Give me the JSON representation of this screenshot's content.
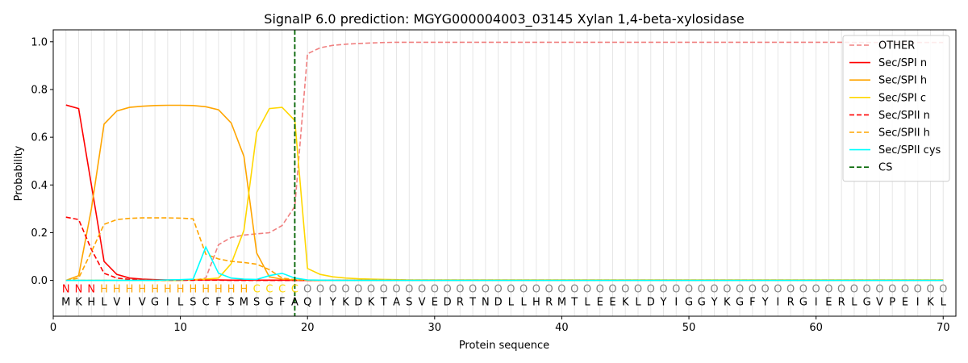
{
  "chart_data": {
    "type": "line",
    "title": "SignalP 6.0 prediction: MGYG000004003_03145 Xylan 1,4-beta-xylosidase",
    "xlabel": "Protein sequence",
    "ylabel": "Probability",
    "xlim": [
      0,
      71
    ],
    "ylim": [
      -0.15,
      1.05
    ],
    "xticks": [
      0,
      10,
      20,
      30,
      40,
      50,
      60,
      70
    ],
    "yticks": [
      0.0,
      0.2,
      0.4,
      0.6,
      0.8,
      1.0
    ],
    "legend_position": "top-right",
    "cleavage_site": {
      "label": "CS",
      "x": 19,
      "color": "#006400"
    },
    "sequence": [
      "M",
      "K",
      "H",
      "L",
      "V",
      "I",
      "V",
      "G",
      "I",
      "L",
      "S",
      "C",
      "F",
      "S",
      "M",
      "S",
      "G",
      "F",
      "A",
      "Q",
      "I",
      "Y",
      "K",
      "D",
      "K",
      "T",
      "A",
      "S",
      "V",
      "E",
      "D",
      "R",
      "T",
      "N",
      "D",
      "L",
      "L",
      "H",
      "R",
      "M",
      "T",
      "L",
      "E",
      "E",
      "K",
      "L",
      "D",
      "Y",
      "I",
      "G",
      "G",
      "Y",
      "K",
      "G",
      "F",
      "Y",
      "I",
      "R",
      "G",
      "I",
      "E",
      "R",
      "L",
      "G",
      "V",
      "P",
      "E",
      "I",
      "K",
      "L"
    ],
    "region_labels": [
      "N",
      "N",
      "N",
      "H",
      "H",
      "H",
      "H",
      "H",
      "H",
      "H",
      "H",
      "H",
      "H",
      "H",
      "H",
      "C",
      "C",
      "C",
      "C",
      "O",
      "O",
      "O",
      "O",
      "O",
      "O",
      "O",
      "O",
      "O",
      "O",
      "O",
      "O",
      "O",
      "O",
      "O",
      "O",
      "O",
      "O",
      "O",
      "O",
      "O",
      "O",
      "O",
      "O",
      "O",
      "O",
      "O",
      "O",
      "O",
      "O",
      "O",
      "O",
      "O",
      "O",
      "O",
      "O",
      "O",
      "O",
      "O",
      "O",
      "O",
      "O",
      "O",
      "O",
      "O",
      "O",
      "O",
      "O",
      "O",
      "O",
      "O"
    ],
    "region_colors": {
      "N": "#ff0000",
      "H": "#ffa500",
      "C": "#ffd700",
      "O": "#808080"
    },
    "series": [
      {
        "name": "OTHER",
        "color": "#f08080",
        "dash": "dashed",
        "values": [
          0.0,
          0.0,
          0.0,
          0.0,
          0.0,
          0.0,
          0.0,
          0.0,
          0.0,
          0.0,
          0.0,
          0.01,
          0.15,
          0.18,
          0.19,
          0.195,
          0.2,
          0.23,
          0.31,
          0.95,
          0.975,
          0.985,
          0.99,
          0.993,
          0.995,
          0.997,
          0.998,
          0.998,
          0.998,
          0.998,
          0.998,
          0.998,
          0.998,
          0.998,
          0.998,
          0.998,
          0.998,
          0.998,
          0.998,
          0.998,
          0.998,
          0.998,
          0.998,
          0.998,
          0.998,
          0.998,
          0.998,
          0.998,
          0.998,
          0.998,
          0.998,
          0.998,
          0.998,
          0.998,
          0.998,
          0.998,
          0.998,
          0.998,
          0.998,
          0.998,
          0.998,
          0.998,
          0.997,
          0.997,
          0.997,
          0.997,
          0.997,
          0.997,
          0.997,
          0.997
        ]
      },
      {
        "name": "Sec/SPI n",
        "color": "#ff0000",
        "dash": "solid",
        "values": [
          0.735,
          0.72,
          0.4,
          0.08,
          0.025,
          0.01,
          0.005,
          0.003,
          0.002,
          0.002,
          0.002,
          0.002,
          0.002,
          0.001,
          0.001,
          0.001,
          0.001,
          0.001,
          0.0,
          0.0,
          0.0,
          0.0,
          0.0,
          0.0,
          0.0,
          0.0,
          0.0,
          0.0,
          0.0,
          0.0,
          0.0,
          0.0,
          0.0,
          0.0,
          0.0,
          0.0,
          0.0,
          0.0,
          0.0,
          0.0,
          0.0,
          0.0,
          0.0,
          0.0,
          0.0,
          0.0,
          0.0,
          0.0,
          0.0,
          0.0,
          0.0,
          0.0,
          0.0,
          0.0,
          0.0,
          0.0,
          0.0,
          0.0,
          0.0,
          0.0,
          0.0,
          0.0,
          0.0,
          0.0,
          0.0,
          0.0,
          0.0,
          0.0,
          0.0,
          0.0
        ]
      },
      {
        "name": "Sec/SPI h",
        "color": "#ffa500",
        "dash": "solid",
        "values": [
          0.0,
          0.02,
          0.3,
          0.655,
          0.71,
          0.725,
          0.73,
          0.733,
          0.734,
          0.734,
          0.733,
          0.728,
          0.715,
          0.66,
          0.52,
          0.115,
          0.015,
          0.005,
          0.002,
          0.001,
          0.0,
          0.0,
          0.0,
          0.0,
          0.0,
          0.0,
          0.0,
          0.0,
          0.0,
          0.0,
          0.0,
          0.0,
          0.0,
          0.0,
          0.0,
          0.0,
          0.0,
          0.0,
          0.0,
          0.0,
          0.0,
          0.0,
          0.0,
          0.0,
          0.0,
          0.0,
          0.0,
          0.0,
          0.0,
          0.0,
          0.0,
          0.0,
          0.0,
          0.0,
          0.0,
          0.0,
          0.0,
          0.0,
          0.0,
          0.0,
          0.0,
          0.0,
          0.0,
          0.0,
          0.0,
          0.0,
          0.0,
          0.0,
          0.0,
          0.0
        ]
      },
      {
        "name": "Sec/SPI c",
        "color": "#ffd700",
        "dash": "solid",
        "values": [
          0.0,
          0.0,
          0.0,
          0.0,
          0.0,
          0.0,
          0.0,
          0.0,
          0.0,
          0.0,
          0.003,
          0.005,
          0.01,
          0.07,
          0.21,
          0.62,
          0.72,
          0.725,
          0.67,
          0.05,
          0.025,
          0.015,
          0.01,
          0.007,
          0.005,
          0.004,
          0.003,
          0.002,
          0.002,
          0.002,
          0.002,
          0.002,
          0.002,
          0.002,
          0.002,
          0.002,
          0.002,
          0.002,
          0.002,
          0.002,
          0.002,
          0.002,
          0.002,
          0.002,
          0.002,
          0.002,
          0.002,
          0.002,
          0.002,
          0.002,
          0.002,
          0.002,
          0.002,
          0.002,
          0.002,
          0.002,
          0.002,
          0.002,
          0.002,
          0.002,
          0.002,
          0.002,
          0.002,
          0.002,
          0.002,
          0.002,
          0.002,
          0.002,
          0.002,
          0.002
        ]
      },
      {
        "name": "Sec/SPII n",
        "color": "#ff0000",
        "dash": "dashed",
        "values": [
          0.265,
          0.255,
          0.13,
          0.03,
          0.01,
          0.004,
          0.002,
          0.001,
          0.001,
          0.001,
          0.001,
          0.001,
          0.001,
          0.0,
          0.0,
          0.0,
          0.0,
          0.0,
          0.0,
          0.0,
          0.0,
          0.0,
          0.0,
          0.0,
          0.0,
          0.0,
          0.0,
          0.0,
          0.0,
          0.0,
          0.0,
          0.0,
          0.0,
          0.0,
          0.0,
          0.0,
          0.0,
          0.0,
          0.0,
          0.0,
          0.0,
          0.0,
          0.0,
          0.0,
          0.0,
          0.0,
          0.0,
          0.0,
          0.0,
          0.0,
          0.0,
          0.0,
          0.0,
          0.0,
          0.0,
          0.0,
          0.0,
          0.0,
          0.0,
          0.0,
          0.0,
          0.0,
          0.0,
          0.0,
          0.0,
          0.0,
          0.0,
          0.0,
          0.0,
          0.0
        ]
      },
      {
        "name": "Sec/SPII h",
        "color": "#ffa500",
        "dash": "dashed",
        "values": [
          0.0,
          0.01,
          0.12,
          0.235,
          0.255,
          0.26,
          0.262,
          0.262,
          0.262,
          0.261,
          0.258,
          0.11,
          0.09,
          0.08,
          0.075,
          0.068,
          0.045,
          0.01,
          0.003,
          0.001,
          0.0,
          0.0,
          0.0,
          0.0,
          0.0,
          0.0,
          0.0,
          0.0,
          0.0,
          0.0,
          0.0,
          0.0,
          0.0,
          0.0,
          0.0,
          0.0,
          0.0,
          0.0,
          0.0,
          0.0,
          0.0,
          0.0,
          0.0,
          0.0,
          0.0,
          0.0,
          0.0,
          0.0,
          0.0,
          0.0,
          0.0,
          0.0,
          0.0,
          0.0,
          0.0,
          0.0,
          0.0,
          0.0,
          0.0,
          0.0,
          0.0,
          0.0,
          0.0,
          0.0,
          0.0,
          0.0,
          0.0,
          0.0,
          0.0,
          0.0
        ]
      },
      {
        "name": "Sec/SPII cys",
        "color": "#00ffff",
        "dash": "solid",
        "values": [
          0.0,
          0.0,
          0.0,
          0.0,
          0.0,
          0.0,
          0.0,
          0.0,
          0.002,
          0.003,
          0.005,
          0.14,
          0.03,
          0.01,
          0.005,
          0.004,
          0.02,
          0.03,
          0.01,
          0.002,
          0.001,
          0.0,
          0.0,
          0.0,
          0.0,
          0.0,
          0.0,
          0.0,
          0.0,
          0.0,
          0.0,
          0.0,
          0.0,
          0.0,
          0.0,
          0.0,
          0.0,
          0.0,
          0.0,
          0.0,
          0.0,
          0.0,
          0.0,
          0.0,
          0.0,
          0.0,
          0.0,
          0.0,
          0.0,
          0.0,
          0.0,
          0.0,
          0.0,
          0.0,
          0.0,
          0.0,
          0.0,
          0.0,
          0.0,
          0.0,
          0.0,
          0.0,
          0.0,
          0.0,
          0.0,
          0.0,
          0.0,
          0.0,
          0.0,
          0.0
        ]
      }
    ]
  }
}
